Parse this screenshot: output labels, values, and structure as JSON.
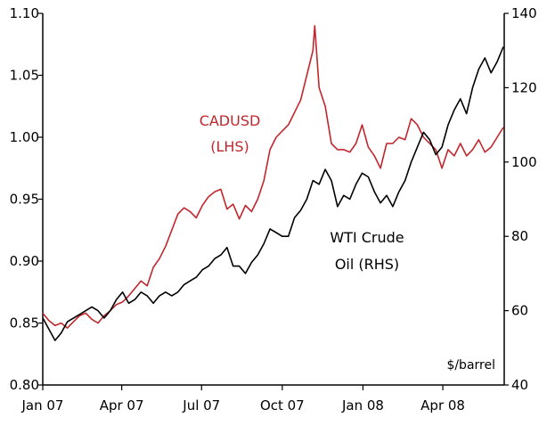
{
  "chart_data": {
    "type": "line",
    "title": "",
    "xlabel": "",
    "ylabel_left": "",
    "ylabel_right": "",
    "units_note": "$/barrel",
    "x_ticks": [
      "Jan 07",
      "Apr 07",
      "Jul 07",
      "Oct 07",
      "Jan 08",
      "Apr 08"
    ],
    "y_left_ticks": [
      "0.80",
      "0.85",
      "0.90",
      "0.95",
      "1.00",
      "1.05",
      "1.10"
    ],
    "y_left_range": [
      0.8,
      1.1
    ],
    "y_right_ticks": [
      "40",
      "60",
      "80",
      "100",
      "120",
      "140"
    ],
    "y_right_range": [
      40,
      140
    ],
    "x_range": [
      "2007-01-01",
      "2008-06-10"
    ],
    "grid": false,
    "colors": {
      "cadusd": "#c0272d",
      "wti": "#000000"
    },
    "series": [
      {
        "name": "CADUSD (LHS)",
        "label_lines": [
          "CADUSD",
          "(LHS)"
        ],
        "axis": "left",
        "points": [
          [
            "2007-01-01",
            0.858
          ],
          [
            "2007-01-08",
            0.852
          ],
          [
            "2007-01-15",
            0.848
          ],
          [
            "2007-01-22",
            0.85
          ],
          [
            "2007-01-29",
            0.846
          ],
          [
            "2007-02-05",
            0.851
          ],
          [
            "2007-02-12",
            0.856
          ],
          [
            "2007-02-19",
            0.858
          ],
          [
            "2007-02-26",
            0.853
          ],
          [
            "2007-03-05",
            0.85
          ],
          [
            "2007-03-12",
            0.856
          ],
          [
            "2007-03-19",
            0.86
          ],
          [
            "2007-03-26",
            0.865
          ],
          [
            "2007-04-02",
            0.867
          ],
          [
            "2007-04-09",
            0.872
          ],
          [
            "2007-04-16",
            0.878
          ],
          [
            "2007-04-23",
            0.884
          ],
          [
            "2007-04-30",
            0.88
          ],
          [
            "2007-05-07",
            0.895
          ],
          [
            "2007-05-14",
            0.902
          ],
          [
            "2007-05-21",
            0.912
          ],
          [
            "2007-05-28",
            0.925
          ],
          [
            "2007-06-04",
            0.938
          ],
          [
            "2007-06-11",
            0.943
          ],
          [
            "2007-06-18",
            0.94
          ],
          [
            "2007-06-25",
            0.935
          ],
          [
            "2007-07-02",
            0.945
          ],
          [
            "2007-07-09",
            0.952
          ],
          [
            "2007-07-16",
            0.956
          ],
          [
            "2007-07-23",
            0.958
          ],
          [
            "2007-07-30",
            0.942
          ],
          [
            "2007-08-06",
            0.946
          ],
          [
            "2007-08-13",
            0.934
          ],
          [
            "2007-08-20",
            0.945
          ],
          [
            "2007-08-27",
            0.94
          ],
          [
            "2007-09-03",
            0.95
          ],
          [
            "2007-09-10",
            0.965
          ],
          [
            "2007-09-17",
            0.99
          ],
          [
            "2007-09-24",
            1.0
          ],
          [
            "2007-10-01",
            1.005
          ],
          [
            "2007-10-08",
            1.01
          ],
          [
            "2007-10-15",
            1.02
          ],
          [
            "2007-10-22",
            1.03
          ],
          [
            "2007-10-29",
            1.05
          ],
          [
            "2007-11-05",
            1.07
          ],
          [
            "2007-11-07",
            1.09
          ],
          [
            "2007-11-12",
            1.04
          ],
          [
            "2007-11-19",
            1.025
          ],
          [
            "2007-11-26",
            0.995
          ],
          [
            "2007-12-03",
            0.99
          ],
          [
            "2007-12-10",
            0.99
          ],
          [
            "2007-12-17",
            0.988
          ],
          [
            "2007-12-24",
            0.995
          ],
          [
            "2007-12-31",
            1.01
          ],
          [
            "2008-01-07",
            0.992
          ],
          [
            "2008-01-14",
            0.985
          ],
          [
            "2008-01-21",
            0.975
          ],
          [
            "2008-01-28",
            0.995
          ],
          [
            "2008-02-04",
            0.995
          ],
          [
            "2008-02-11",
            1.0
          ],
          [
            "2008-02-18",
            0.998
          ],
          [
            "2008-02-25",
            1.015
          ],
          [
            "2008-03-03",
            1.01
          ],
          [
            "2008-03-10",
            1.0
          ],
          [
            "2008-03-17",
            0.995
          ],
          [
            "2008-03-24",
            0.99
          ],
          [
            "2008-03-31",
            0.975
          ],
          [
            "2008-04-07",
            0.99
          ],
          [
            "2008-04-14",
            0.985
          ],
          [
            "2008-04-21",
            0.995
          ],
          [
            "2008-04-28",
            0.985
          ],
          [
            "2008-05-05",
            0.99
          ],
          [
            "2008-05-12",
            0.998
          ],
          [
            "2008-05-19",
            0.988
          ],
          [
            "2008-05-26",
            0.992
          ],
          [
            "2008-06-02",
            1.0
          ],
          [
            "2008-06-09",
            1.008
          ]
        ]
      },
      {
        "name": "WTI Crude Oil (RHS)",
        "label_lines": [
          "WTI Crude",
          "Oil (RHS)"
        ],
        "axis": "right",
        "points": [
          [
            "2007-01-01",
            58
          ],
          [
            "2007-01-08",
            55
          ],
          [
            "2007-01-15",
            52
          ],
          [
            "2007-01-22",
            54
          ],
          [
            "2007-01-29",
            57
          ],
          [
            "2007-02-05",
            58
          ],
          [
            "2007-02-12",
            59
          ],
          [
            "2007-02-19",
            60
          ],
          [
            "2007-02-26",
            61
          ],
          [
            "2007-03-05",
            60
          ],
          [
            "2007-03-12",
            58
          ],
          [
            "2007-03-19",
            60
          ],
          [
            "2007-03-26",
            63
          ],
          [
            "2007-04-02",
            65
          ],
          [
            "2007-04-09",
            62
          ],
          [
            "2007-04-16",
            63
          ],
          [
            "2007-04-23",
            65
          ],
          [
            "2007-04-30",
            64
          ],
          [
            "2007-05-07",
            62
          ],
          [
            "2007-05-14",
            64
          ],
          [
            "2007-05-21",
            65
          ],
          [
            "2007-05-28",
            64
          ],
          [
            "2007-06-04",
            65
          ],
          [
            "2007-06-11",
            67
          ],
          [
            "2007-06-18",
            68
          ],
          [
            "2007-06-25",
            69
          ],
          [
            "2007-07-02",
            71
          ],
          [
            "2007-07-09",
            72
          ],
          [
            "2007-07-16",
            74
          ],
          [
            "2007-07-23",
            75
          ],
          [
            "2007-07-30",
            77
          ],
          [
            "2007-08-06",
            72
          ],
          [
            "2007-08-13",
            72
          ],
          [
            "2007-08-20",
            70
          ],
          [
            "2007-08-27",
            73
          ],
          [
            "2007-09-03",
            75
          ],
          [
            "2007-09-10",
            78
          ],
          [
            "2007-09-17",
            82
          ],
          [
            "2007-09-24",
            81
          ],
          [
            "2007-10-01",
            80
          ],
          [
            "2007-10-08",
            80
          ],
          [
            "2007-10-15",
            85
          ],
          [
            "2007-10-22",
            87
          ],
          [
            "2007-10-29",
            90
          ],
          [
            "2007-11-05",
            95
          ],
          [
            "2007-11-12",
            94
          ],
          [
            "2007-11-19",
            98
          ],
          [
            "2007-11-26",
            95
          ],
          [
            "2007-12-03",
            88
          ],
          [
            "2007-12-10",
            91
          ],
          [
            "2007-12-17",
            90
          ],
          [
            "2007-12-24",
            94
          ],
          [
            "2007-12-31",
            97
          ],
          [
            "2008-01-07",
            96
          ],
          [
            "2008-01-14",
            92
          ],
          [
            "2008-01-21",
            89
          ],
          [
            "2008-01-28",
            91
          ],
          [
            "2008-02-04",
            88
          ],
          [
            "2008-02-11",
            92
          ],
          [
            "2008-02-18",
            95
          ],
          [
            "2008-02-25",
            100
          ],
          [
            "2008-03-03",
            104
          ],
          [
            "2008-03-10",
            108
          ],
          [
            "2008-03-17",
            106
          ],
          [
            "2008-03-24",
            102
          ],
          [
            "2008-03-31",
            104
          ],
          [
            "2008-04-07",
            110
          ],
          [
            "2008-04-14",
            114
          ],
          [
            "2008-04-21",
            117
          ],
          [
            "2008-04-28",
            113
          ],
          [
            "2008-05-05",
            120
          ],
          [
            "2008-05-12",
            125
          ],
          [
            "2008-05-19",
            128
          ],
          [
            "2008-05-26",
            124
          ],
          [
            "2008-06-02",
            127
          ],
          [
            "2008-06-09",
            131
          ]
        ]
      }
    ]
  }
}
